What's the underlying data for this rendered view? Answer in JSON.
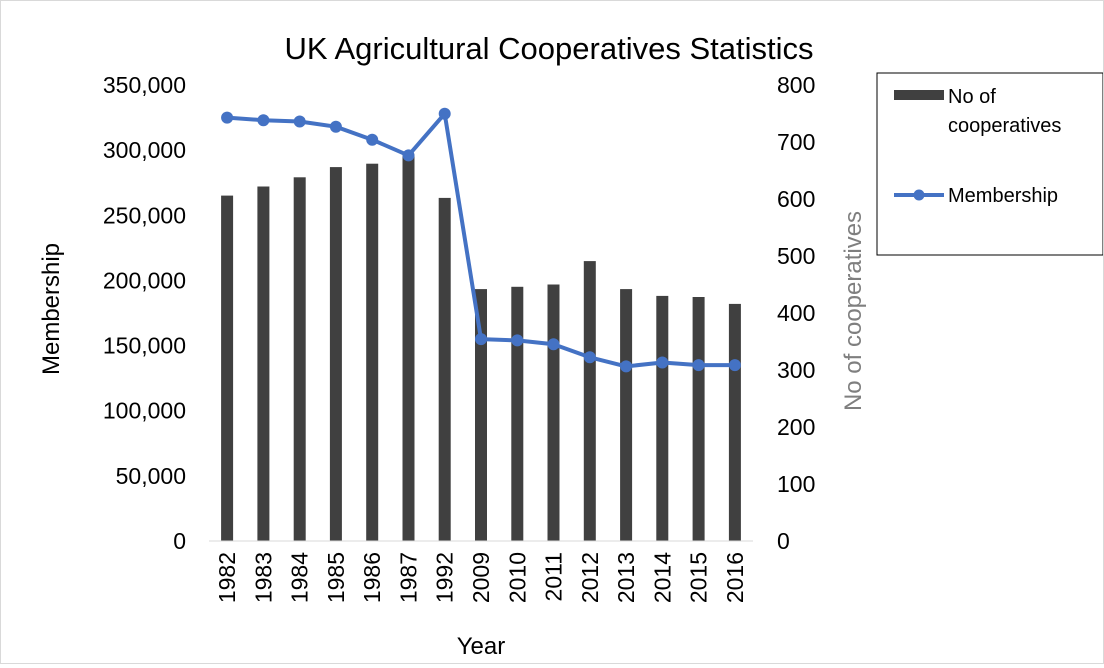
{
  "chart_data": {
    "type": "bar",
    "title": "UK Agricultural Cooperatives Statistics",
    "xlabel": "Year",
    "ylabel": "Membership",
    "y2label": "No of cooperatives",
    "categories": [
      "1982",
      "1983",
      "1984",
      "1985",
      "1986",
      "1987",
      "1992",
      "2009",
      "2010",
      "2011",
      "2012",
      "2013",
      "2014",
      "2015",
      "2016"
    ],
    "ylim": [
      0,
      350000
    ],
    "y_ticks": [
      0,
      50000,
      100000,
      150000,
      200000,
      250000,
      300000,
      350000
    ],
    "y_tick_labels": [
      "0",
      "50,000",
      "100,000",
      "150,000",
      "200,000",
      "250,000",
      "300,000",
      "350,000"
    ],
    "y2lim": [
      0,
      800
    ],
    "y2_ticks": [
      0,
      100,
      200,
      300,
      400,
      500,
      600,
      700,
      800
    ],
    "y2_tick_labels": [
      "0",
      "100",
      "200",
      "300",
      "400",
      "500",
      "600",
      "700",
      "800"
    ],
    "grid": false,
    "legend_position": "right",
    "series": [
      {
        "name": "No of cooperatives",
        "type": "bar",
        "axis": "right",
        "color": "#404040",
        "values": [
          606,
          622,
          638,
          656,
          662,
          678,
          602,
          442,
          446,
          450,
          491,
          442,
          430,
          428,
          416
        ]
      },
      {
        "name": "Membership",
        "type": "line",
        "axis": "left",
        "color": "#4472c4",
        "values": [
          325000,
          323000,
          322000,
          318000,
          308000,
          296000,
          328000,
          155000,
          154000,
          151000,
          141000,
          134000,
          137000,
          135000,
          135000
        ]
      }
    ]
  }
}
